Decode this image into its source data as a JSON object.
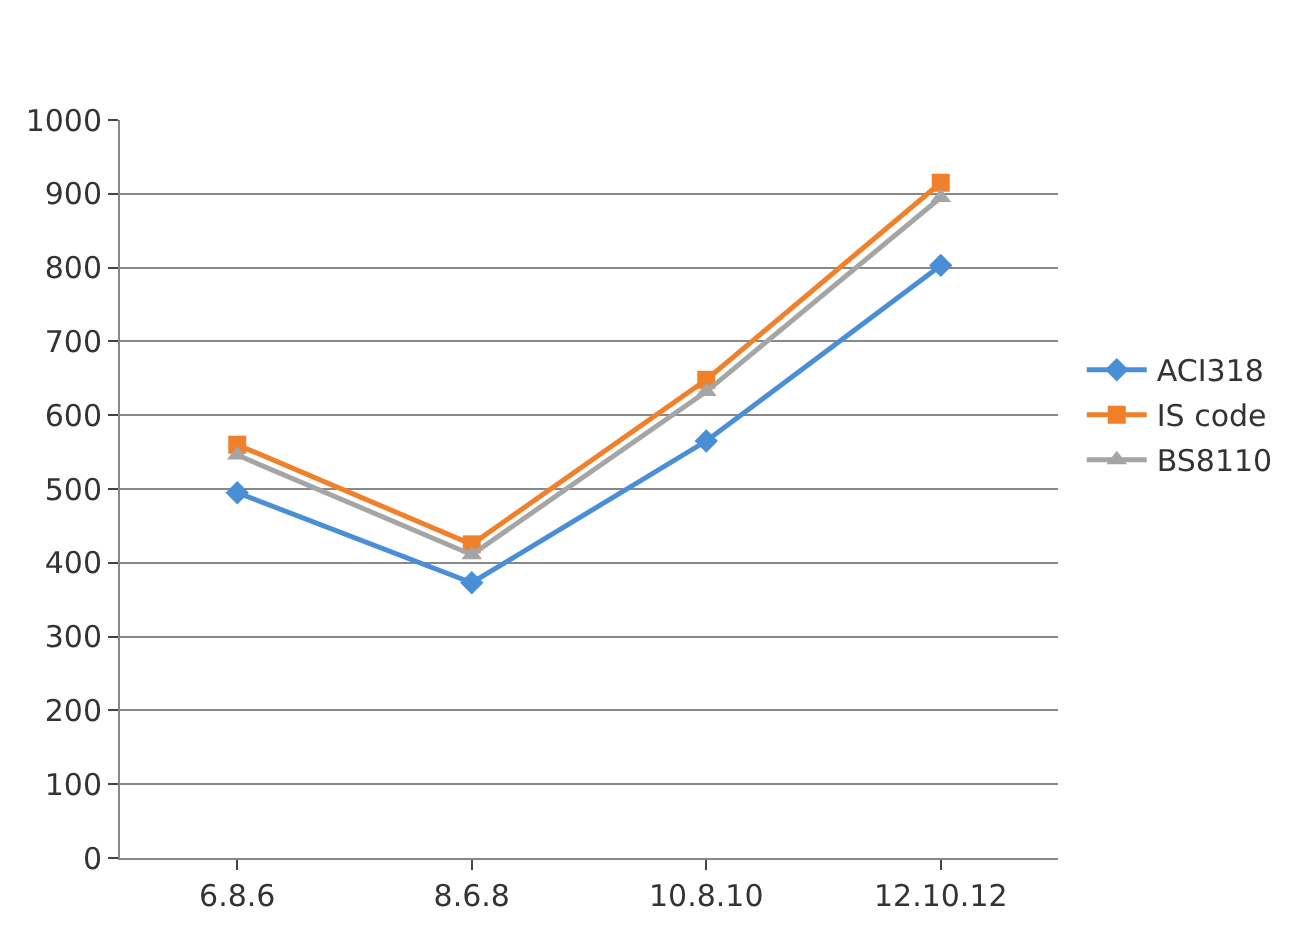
{
  "chart_data": {
    "type": "line",
    "categories": [
      "6.8.6",
      "8.6.8",
      "10.8.10",
      "12.10.12"
    ],
    "series": [
      {
        "name": "ACI318",
        "color": "#4a8fd6",
        "marker": "diamond",
        "values": [
          495,
          373,
          565,
          803
        ]
      },
      {
        "name": "IS code",
        "color": "#f0812a",
        "marker": "square",
        "values": [
          560,
          425,
          648,
          915
        ]
      },
      {
        "name": "BS8110",
        "color": "#a5a5a5",
        "marker": "triangle",
        "values": [
          546,
          411,
          632,
          895
        ]
      }
    ],
    "ylim": [
      0,
      1000
    ],
    "yticks": [
      0,
      100,
      200,
      300,
      400,
      500,
      600,
      700,
      800,
      900,
      1000
    ],
    "grid": "y",
    "legend": "right"
  }
}
